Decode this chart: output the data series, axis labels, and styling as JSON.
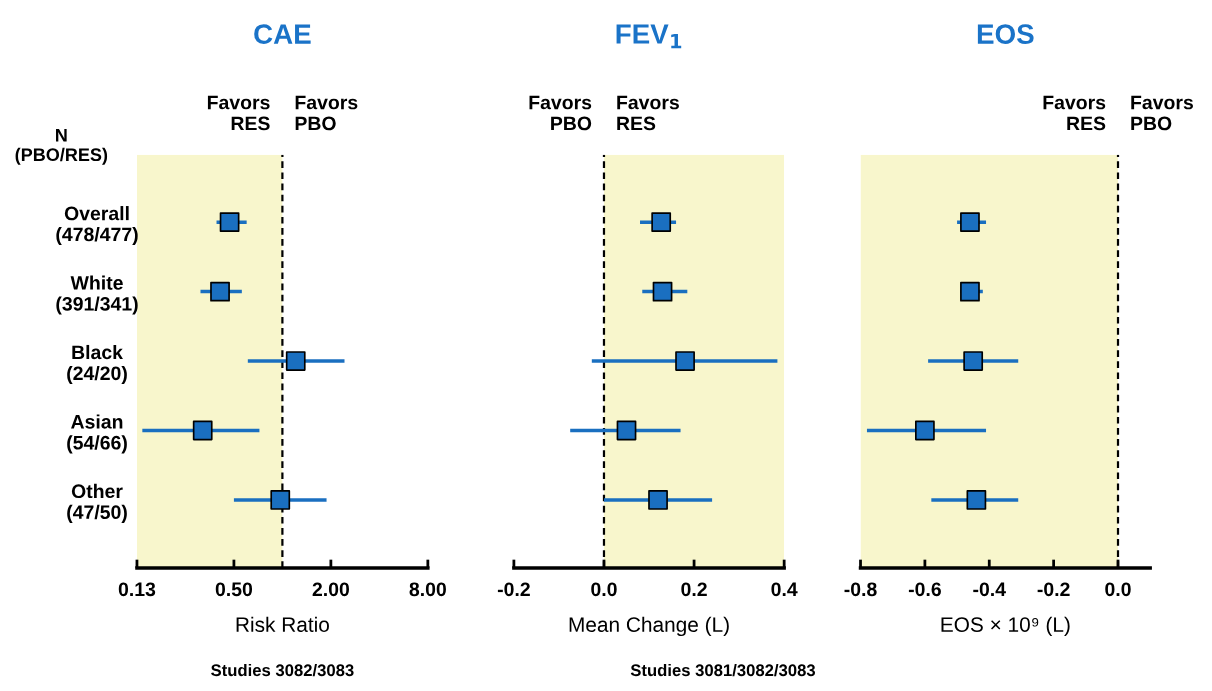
{
  "chart_data": [
    {
      "type": "scatter",
      "orientation": "horizontal",
      "title": "CAE",
      "xlabel": "Risk Ratio",
      "log": "x",
      "marker": "square",
      "grid": false,
      "legend": false,
      "categories": [
        "Overall\n(478/477)",
        "White\n(391/341)",
        "Black\n(24/20)",
        "Asian\n(54/66)",
        "Other\n(47/50)"
      ],
      "series": [
        {
          "color": "#1a6fc0",
          "values": [
            0.47,
            0.41,
            1.21,
            0.32,
            0.97
          ],
          "errors": [
            [
              0.39,
              0.6
            ],
            [
              0.31,
              0.56
            ],
            [
              0.61,
              2.43
            ],
            [
              0.135,
              0.72
            ],
            [
              0.5,
              1.88
            ]
          ]
        }
      ],
      "xlim": [
        0.125,
        8
      ],
      "xticks": [
        {
          "value": 0.125,
          "label": "0.13"
        },
        {
          "value": 0.5,
          "label": "0.50"
        },
        {
          "value": 2,
          "label": "2.00"
        },
        {
          "value": 8,
          "label": "8.00"
        }
      ],
      "ref_lines": [
        {
          "axis": "x",
          "value": 1,
          "color": "#000000",
          "line_style": "dashed"
        }
      ],
      "bands": [
        {
          "axis": "x",
          "from": 0.125,
          "to": 1,
          "color": "#f8f6cc"
        }
      ],
      "annotations": [
        "Favors\nRES",
        "Favors\nPBO",
        "N\n(PBO/RES)",
        "Studies 3082/3083"
      ]
    },
    {
      "type": "scatter",
      "orientation": "horizontal",
      "title": "FEV$_{1}$",
      "xlabel": "Mean Change (L)",
      "marker": "square",
      "grid": false,
      "legend": false,
      "tick_labels": "x",
      "categories": [
        null,
        null,
        null,
        null,
        null
      ],
      "series": [
        {
          "color": "#1a6fc0",
          "values": [
            0.127,
            0.13,
            0.18,
            0.05,
            0.12
          ],
          "errors": [
            [
              0.08,
              0.16
            ],
            [
              0.085,
              0.185
            ],
            [
              -0.027,
              0.385
            ],
            [
              -0.075,
              0.17
            ],
            [
              0.0,
              0.24
            ]
          ]
        }
      ],
      "xlim": [
        -0.2,
        0.4
      ],
      "xticks": [
        {
          "value": -0.2,
          "label": "-0.2"
        },
        {
          "value": 0,
          "label": "0.0"
        },
        {
          "value": 0.2,
          "label": "0.2"
        },
        {
          "value": 0.4,
          "label": "0.4"
        }
      ],
      "ref_lines": [
        {
          "axis": "x",
          "value": 0,
          "color": "#000000",
          "line_style": "dashed"
        }
      ],
      "bands": [
        {
          "axis": "x",
          "from": 0,
          "to": 0.4,
          "color": "#f8f6cc"
        }
      ],
      "annotations": [
        "Favors\nPBO",
        "Favors\nRES"
      ]
    },
    {
      "type": "scatter",
      "orientation": "horizontal",
      "title": "EOS",
      "xlabel": "EOS × 10⁹ (L)",
      "marker": "square",
      "grid": false,
      "legend": false,
      "tick_labels": "x",
      "categories": [
        null,
        null,
        null,
        null,
        null
      ],
      "series": [
        {
          "color": "#1a6fc0",
          "values": [
            -0.46,
            -0.46,
            -0.45,
            -0.6,
            -0.44
          ],
          "errors": [
            [
              -0.5,
              -0.41
            ],
            [
              -0.49,
              -0.42
            ],
            [
              -0.59,
              -0.31
            ],
            [
              -0.78,
              -0.41
            ],
            [
              -0.58,
              -0.31
            ]
          ]
        }
      ],
      "xlim": [
        -0.8,
        0.1
      ],
      "xticks": [
        {
          "value": -0.8,
          "label": "-0.8"
        },
        {
          "value": -0.6,
          "label": "-0.6"
        },
        {
          "value": -0.4,
          "label": "-0.4"
        },
        {
          "value": -0.2,
          "label": "-0.2"
        },
        {
          "value": 0,
          "label": "0.0"
        }
      ],
      "ref_lines": [
        {
          "axis": "x",
          "value": 0,
          "color": "#000000",
          "line_style": "dashed"
        }
      ],
      "bands": [
        {
          "axis": "x",
          "from": -0.8,
          "to": 0,
          "color": "#f8f6cc"
        }
      ],
      "annotations": [
        "Favors\nRES",
        "Favors\nPBO",
        "Studies 3081/3082/3083"
      ]
    }
  ]
}
